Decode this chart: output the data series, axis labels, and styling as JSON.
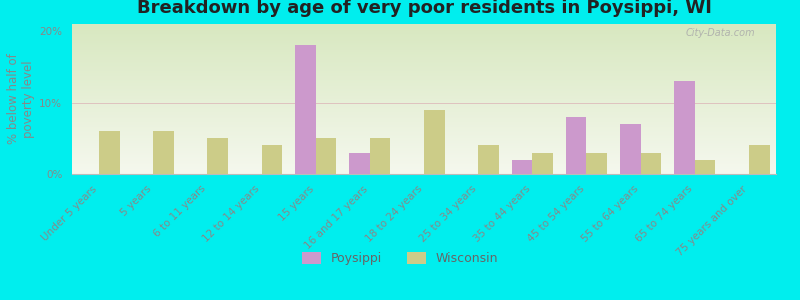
{
  "title": "Breakdown by age of very poor residents in Poysippi, WI",
  "ylabel": "% below half of\npoverty level",
  "categories": [
    "Under 5 years",
    "5 years",
    "6 to 11 years",
    "12 to 14 years",
    "15 years",
    "16 and 17 years",
    "18 to 24 years",
    "25 to 34 years",
    "35 to 44 years",
    "45 to 54 years",
    "55 to 64 years",
    "65 to 74 years",
    "75 years and over"
  ],
  "poysippi": [
    0,
    0,
    0,
    0,
    18.0,
    3.0,
    0,
    0,
    2.0,
    8.0,
    7.0,
    13.0,
    0
  ],
  "wisconsin": [
    6.0,
    6.0,
    5.0,
    4.0,
    5.0,
    5.0,
    9.0,
    4.0,
    3.0,
    3.0,
    3.0,
    2.0,
    4.0
  ],
  "poysippi_color": "#cc99cc",
  "wisconsin_color": "#cccc88",
  "background_color": "#00eeee",
  "plot_bg_color": "#eef4e0",
  "ylim": [
    0,
    21
  ],
  "yticks": [
    0,
    10,
    20
  ],
  "ytick_labels": [
    "0%",
    "10%",
    "20%"
  ],
  "title_fontsize": 13,
  "axis_label_fontsize": 8.5,
  "tick_fontsize": 7.5,
  "legend_fontsize": 9,
  "watermark": "City-Data.com",
  "bar_width": 0.38
}
